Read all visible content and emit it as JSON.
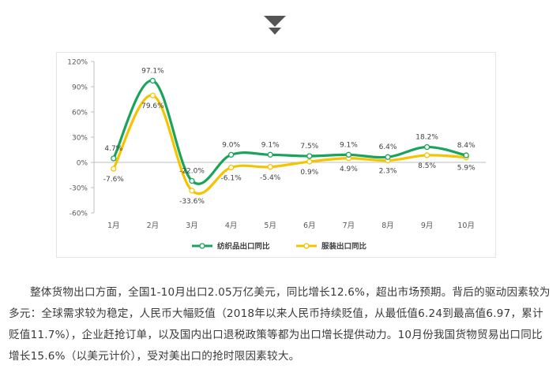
{
  "header": {
    "icon": "double-chevron-down-icon"
  },
  "chart_data": {
    "type": "line",
    "title": "",
    "xlabel": "",
    "ylabel": "",
    "categories": [
      "1月",
      "2月",
      "3月",
      "4月",
      "5月",
      "6月",
      "7月",
      "8月",
      "9月",
      "10月"
    ],
    "y_ticks": [
      "120%",
      "90%",
      "60%",
      "30%",
      "0%",
      "-30%",
      "-60%"
    ],
    "ylim": [
      -60,
      120
    ],
    "grid": false,
    "legend_position": "bottom",
    "series": [
      {
        "name": "纺织品出口同比",
        "color": "#1aa35a",
        "values": [
          4.7,
          97.1,
          -22.0,
          9.0,
          9.1,
          7.5,
          9.1,
          6.4,
          18.2,
          8.4
        ],
        "labels": [
          "4.7%",
          "97.1%",
          "-22.0%",
          "9.0%",
          "9.1%",
          "7.5%",
          "9.1%",
          "6.4%",
          "18.2%",
          "8.4%"
        ]
      },
      {
        "name": "服装出口同比",
        "color": "#f5c400",
        "values": [
          -7.6,
          79.6,
          -33.6,
          -6.1,
          -5.4,
          0.9,
          4.9,
          2.3,
          8.5,
          5.9
        ],
        "labels": [
          "-7.6%",
          "79.6%",
          "-33.6%",
          "-6.1%",
          "-5.4%",
          "0.9%",
          "4.9%",
          "2.3%",
          "8.5%",
          "5.9%"
        ]
      }
    ]
  },
  "paragraph": "整体货物出口方面，全国1-10月出口2.05万亿美元，同比增长12.6%，超出市场预期。背后的驱动因素较为多元：全球需求较为稳定，人民币大幅贬值（2018年以来人民币持续贬值，从最低值6.24到最高值6.97，累计贬值11.7%），企业赶抢订单，以及国内出口退税政策等都为出口增长提供动力。10月份我国货物贸易出口同比增长15.6%（以美元计价），受对美出口的抢时限因素较大。"
}
